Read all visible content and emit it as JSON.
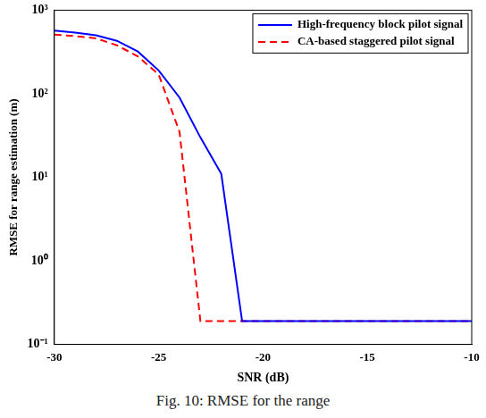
{
  "chart_data": {
    "type": "line",
    "caption": "Fig. 10: RMSE for the range",
    "x_label": "SNR (dB)",
    "y_label": "RMSE for range estimation (m)",
    "x": [
      -30,
      -29,
      -28,
      -27,
      -26,
      -25,
      -24,
      -23,
      -22,
      -21,
      -20,
      -19,
      -18,
      -17,
      -16,
      -15,
      -14,
      -13,
      -12,
      -11,
      -10
    ],
    "series": [
      {
        "name": "High-frequency block pilot signal",
        "color": "#0000ff",
        "line_style": "solid",
        "values": [
          570,
          540,
          500,
          430,
          320,
          190,
          90,
          30,
          11,
          0.19,
          0.19,
          0.19,
          0.19,
          0.19,
          0.19,
          0.19,
          0.19,
          0.19,
          0.19,
          0.19,
          0.19
        ]
      },
      {
        "name": "CA-based staggered pilot signal",
        "color": "#ff0000",
        "line_style": "dashed",
        "values": [
          510,
          490,
          460,
          380,
          280,
          170,
          35,
          0.19,
          0.19,
          0.19,
          0.19,
          0.19,
          0.19,
          0.19,
          0.19,
          0.19,
          0.19,
          0.19,
          0.19,
          0.19,
          0.19
        ]
      }
    ],
    "xlim": [
      -30,
      -10
    ],
    "xticks": [
      -30,
      -25,
      -20,
      -15,
      -10
    ],
    "ylim": [
      0.1,
      1000
    ],
    "yticks": [
      {
        "value": 0.1,
        "label": "10⁻¹"
      },
      {
        "value": 1,
        "label": "10⁰"
      },
      {
        "value": 10,
        "label": "10¹"
      },
      {
        "value": 100,
        "label": "10²"
      },
      {
        "value": 1000,
        "label": "10³"
      }
    ],
    "log": "y",
    "grid": false,
    "legend": "upper right"
  }
}
